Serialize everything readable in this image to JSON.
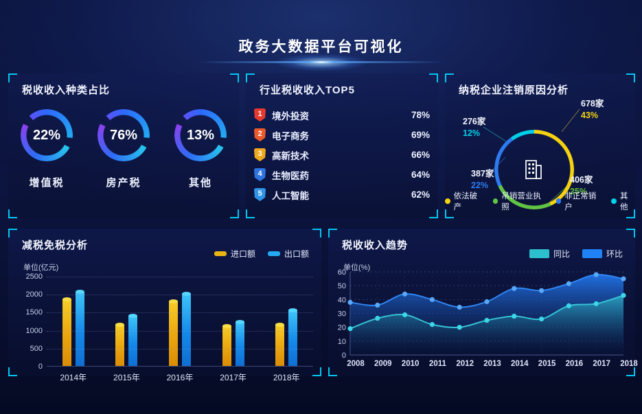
{
  "header": {
    "title": "政务大数据平台可视化"
  },
  "colors": {
    "corner_accent": "#00c6f0",
    "rank_badges": [
      "#e63a30",
      "#ed5a2a",
      "#f0a91c",
      "#2e74e0",
      "#2f93e8"
    ],
    "bar_import_yellow": "#e9b513",
    "bar_export_blue": "#24a9f2",
    "trend_tongbi_teal": "#2cc0cf",
    "trend_huanbi_blue": "#1f82f5"
  },
  "panels": {
    "tax_types": {
      "title": "税收收入种类占比",
      "gauges": [
        {
          "pct_label": "22%",
          "label": "增值税"
        },
        {
          "pct_label": "76%",
          "label": "房产税"
        },
        {
          "pct_label": "13%",
          "label": "其他"
        }
      ]
    },
    "industry_top5": {
      "title": "行业税收收入TOP5",
      "rows": [
        {
          "rank": "1",
          "label": "境外投资",
          "pct_label": "78%"
        },
        {
          "rank": "2",
          "label": "电子商务",
          "pct_label": "69%"
        },
        {
          "rank": "3",
          "label": "高新技术",
          "pct_label": "66%"
        },
        {
          "rank": "4",
          "label": "生物医药",
          "pct_label": "64%"
        },
        {
          "rank": "5",
          "label": "人工智能",
          "pct_label": "62%"
        }
      ]
    },
    "deregistration": {
      "title": "纳税企业注销原因分析",
      "callouts": [
        {
          "count": "678家",
          "pct_label": "43%",
          "slice": 0
        },
        {
          "count": "276家",
          "pct_label": "12%",
          "slice": 3
        },
        {
          "count": "387家",
          "pct_label": "22%",
          "slice": 2
        },
        {
          "count": "406家",
          "pct_label": "25%",
          "slice": 1
        }
      ]
    },
    "tax_reduction": {
      "title": "减税免税分析",
      "unit": "单位(亿元)"
    },
    "trend": {
      "title": "税收收入趋势",
      "unit": "单位(%)"
    }
  },
  "chart_data": [
    {
      "type": "pie",
      "variant": "donut-gauge-group",
      "title": "税收收入种类占比",
      "unit": "%",
      "items": [
        {
          "label": "增值税",
          "value": 22
        },
        {
          "label": "房产税",
          "value": 76
        },
        {
          "label": "其他",
          "value": 13
        }
      ]
    },
    {
      "type": "bar",
      "variant": "horizontal-ranked",
      "title": "行业税收收入TOP5",
      "unit": "%",
      "categories": [
        "境外投资",
        "电子商务",
        "高新技术",
        "生物医药",
        "人工智能"
      ],
      "values": [
        78,
        69,
        66,
        64,
        62
      ]
    },
    {
      "type": "pie",
      "variant": "donut",
      "title": "纳税企业注销原因分析",
      "slices": [
        {
          "label": "依法破产",
          "count": 678,
          "pct": 43,
          "color": "#f5d211"
        },
        {
          "label": "吊销营业执照",
          "count": 406,
          "pct": 25,
          "color": "#62c443"
        },
        {
          "label": "非正常销户",
          "count": 387,
          "pct": 22,
          "color": "#2e7bf0"
        },
        {
          "label": "其他",
          "count": 276,
          "pct": 12,
          "color": "#00cfe8"
        }
      ]
    },
    {
      "type": "bar",
      "title": "减税免税分析",
      "ylabel": "单位(亿元)",
      "ylim": [
        0,
        2500
      ],
      "ytick_step": 500,
      "grid": "dotted-horizontal",
      "legend_position": "top-right",
      "categories": [
        "2014年",
        "2015年",
        "2016年",
        "2017年",
        "2018年"
      ],
      "series": [
        {
          "name": "进口额",
          "color": "#e9b513",
          "values": [
            1850,
            1150,
            1800,
            1100,
            1150
          ]
        },
        {
          "name": "出口额",
          "color": "#24a9f2",
          "values": [
            2070,
            1400,
            2000,
            1230,
            1550
          ]
        }
      ]
    },
    {
      "type": "area",
      "title": "税收收入趋势",
      "ylabel": "单位(%)",
      "ylim": [
        0,
        60
      ],
      "ytick_step": 10,
      "grid": "dotted",
      "legend_position": "top-right",
      "x": [
        "2008",
        "2009",
        "2010",
        "2011",
        "2012",
        "2013",
        "2014",
        "2015",
        "2016",
        "2017",
        "2018"
      ],
      "series": [
        {
          "name": "同比",
          "color": "#2cc0cf",
          "values": [
            19,
            26.5,
            29,
            22,
            20,
            25,
            28,
            26,
            35.5,
            37,
            43
          ]
        },
        {
          "name": "环比",
          "color": "#1f82f5",
          "values": [
            38,
            36,
            44,
            40,
            34.5,
            38.5,
            48,
            46.5,
            51.5,
            58,
            55
          ]
        }
      ]
    }
  ]
}
